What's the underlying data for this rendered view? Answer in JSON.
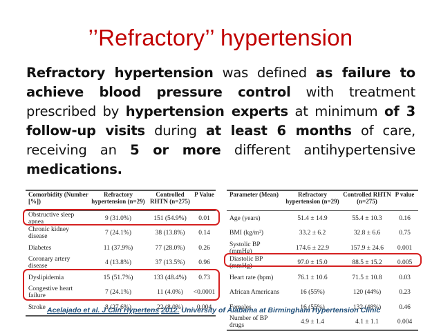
{
  "title": "’’Refractory’’ hypertension",
  "definition": {
    "s1": "Refractory hypertension",
    "s2": " was defined ",
    "s3": "as failure to achieve blood pressure control",
    "s4": " with treatment prescribed by ",
    "s5": "hypertension experts",
    "s6": " at minimum ",
    "s7": "of 3 follow-up visits",
    "s8": " during ",
    "s9": "at least 6 months",
    "s10": " of care, receiving an ",
    "s11": "5 or more",
    "s12": " different antihypertensive ",
    "s13": "medications."
  },
  "table_comorbidity": {
    "headers": [
      "Comorbidity (Number [%])",
      "Refractory hypertension (n=29)",
      "Controlled RHTN (n=275)",
      "P Value"
    ],
    "rows": [
      [
        "Obstructive sleep apnea",
        "9 (31.0%)",
        "151 (54.9%)",
        "0.01"
      ],
      [
        "Chronic kidney disease",
        "7 (24.1%)",
        "38 (13.8%)",
        "0.14"
      ],
      [
        "Diabetes",
        "11 (37.9%)",
        "77 (28.0%)",
        "0.26"
      ],
      [
        "Coronary artery disease",
        "4 (13.8%)",
        "37 (13.5%)",
        "0.96"
      ],
      [
        "Dyslipidemia",
        "15 (51.7%)",
        "133 (48.4%)",
        "0.73"
      ],
      [
        "Congestive heart failure",
        "7 (24.1%)",
        "11 (4.0%)",
        "<0.0001"
      ],
      [
        "Stroke",
        "8 (27.6%)",
        "22 (8.0%)",
        "0.004"
      ]
    ]
  },
  "table_parameters": {
    "headers": [
      "Parameter (Mean)",
      "Refractory hypertension (n=29)",
      "Controlled RHTN (n=275)",
      "P value"
    ],
    "rows": [
      [
        "Age (years)",
        "51.4 ± 14.9",
        "55.4 ± 10.3",
        "0.16"
      ],
      [
        "BMI (kg/m²)",
        "33.2 ± 6.2",
        "32.8 ± 6.6",
        "0.75"
      ],
      [
        "Systolic BP (mmHg)",
        "174.6 ± 22.9",
        "157.9 ± 24.6",
        "0.001"
      ],
      [
        "Diastolic BP (mmHg)",
        "97.0 ± 15.0",
        "88.5 ± 15.2",
        "0.005"
      ],
      [
        "Heart rate (bpm)",
        "76.1 ± 10.6",
        "71.5 ± 10.8",
        "0.03"
      ],
      [
        "African Americans",
        "16 (55%)",
        "120 (44%)",
        "0.23"
      ],
      [
        "Females",
        "16 (55%)",
        "132 (48%)",
        "0.46"
      ],
      [
        "Number of BP drugs",
        "4.9 ± 1.4",
        "4.1 ± 1.1",
        "0.004"
      ]
    ]
  },
  "citation": {
    "link": "Acelajado et al. J Clin Hypertens",
    "year": "2012.",
    "rest": " University of Alabama at Birmingham Hypertension Clinic"
  },
  "colors": {
    "title": "#c00000",
    "highlight_box": "#d42020",
    "citation": "#1f4e79"
  }
}
